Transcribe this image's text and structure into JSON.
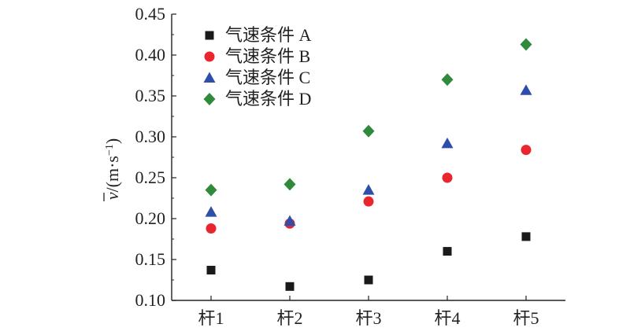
{
  "chart_data": {
    "type": "scatter",
    "categories": [
      "杆1",
      "杆2",
      "杆3",
      "杆4",
      "杆5"
    ],
    "series": [
      {
        "name": "气速条件 A",
        "marker": "square",
        "color": "#1a1a1a",
        "values": [
          0.137,
          0.117,
          0.125,
          0.16,
          0.178
        ]
      },
      {
        "name": "气速条件 B",
        "marker": "circle",
        "color": "#e8262d",
        "values": [
          0.188,
          0.194,
          0.221,
          0.25,
          0.284
        ]
      },
      {
        "name": "气速条件 C",
        "marker": "triangle",
        "color": "#2d4faa",
        "values": [
          0.208,
          0.197,
          0.235,
          0.292,
          0.357
        ]
      },
      {
        "name": "气速条件 D",
        "marker": "diamond",
        "color": "#2f8a3b",
        "values": [
          0.235,
          0.242,
          0.307,
          0.37,
          0.413
        ]
      }
    ],
    "ylabel": {
      "symbol": "v",
      "paren_open": "/(m·s",
      "superscript": "−1",
      "paren_close": ")"
    },
    "ylim": [
      0.1,
      0.45
    ],
    "yticks": [
      "0.10",
      "0.15",
      "0.20",
      "0.25",
      "0.30",
      "0.35",
      "0.40",
      "0.45"
    ],
    "grid": false,
    "legend_position": "top-left"
  }
}
